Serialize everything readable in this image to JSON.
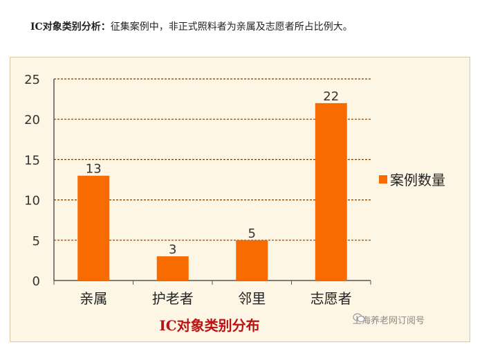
{
  "caption": {
    "lead": "IC对象类别分析：",
    "text": "征集案例中，非正式照料者为亲属及志愿者所占比例大。"
  },
  "watermark": {
    "icon": "wechat-icon",
    "text": "上海养老网订阅号"
  },
  "colors": {
    "bar": "#f76b00",
    "grid": "#7a3a00",
    "background": "#fdf6e4",
    "xlabel": "#b11111"
  },
  "chart_data": {
    "type": "bar",
    "title": "",
    "xlabel": "IC对象类别分布",
    "ylabel": "",
    "categories": [
      "亲属",
      "护老者",
      "邻里",
      "志愿者"
    ],
    "series": [
      {
        "name": "案例数量",
        "values": [
          13,
          3,
          5,
          22
        ]
      }
    ],
    "ylim": [
      0,
      25
    ],
    "yticks": [
      "0",
      "5",
      "10",
      "15",
      "20",
      "25"
    ],
    "grid": true,
    "legend": "right",
    "data_labels": true
  }
}
